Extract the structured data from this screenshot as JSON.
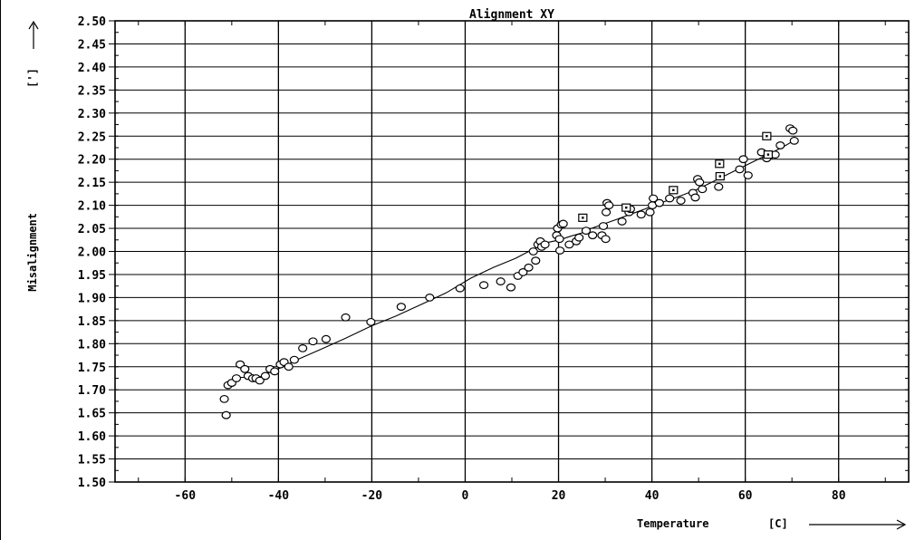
{
  "chart_data": {
    "type": "scatter",
    "title": "Alignment XY",
    "xlabel": "Temperature",
    "xunit": "[C]",
    "ylabel": "Misalignment",
    "yunit": "[']",
    "xlim": [
      -75,
      95
    ],
    "ylim": [
      1.5,
      2.5
    ],
    "x_ticks": [
      -60,
      -40,
      -20,
      0,
      20,
      40,
      60,
      80
    ],
    "y_ticks": [
      "1.50",
      "1.55",
      "1.60",
      "1.65",
      "1.70",
      "1.75",
      "1.80",
      "1.85",
      "1.90",
      "1.95",
      "2.00",
      "2.05",
      "2.10",
      "2.15",
      "2.20",
      "2.25",
      "2.30",
      "2.35",
      "2.40",
      "2.45",
      "2.50"
    ],
    "grid": true,
    "series": [
      {
        "marker": "circle",
        "points": [
          [
            -51.6,
            1.68
          ],
          [
            -51.2,
            1.645
          ],
          [
            -50.8,
            1.71
          ],
          [
            -50,
            1.715
          ],
          [
            -49,
            1.725
          ],
          [
            -48.2,
            1.755
          ],
          [
            -47.2,
            1.745
          ],
          [
            -46.5,
            1.73
          ],
          [
            -45.5,
            1.725
          ],
          [
            -44.8,
            1.725
          ],
          [
            -44,
            1.72
          ],
          [
            -42.8,
            1.73
          ],
          [
            -41.8,
            1.745
          ],
          [
            -40.8,
            1.74
          ],
          [
            -39.6,
            1.755
          ],
          [
            -38.8,
            1.76
          ],
          [
            -37.8,
            1.75
          ],
          [
            -36.6,
            1.765
          ],
          [
            -34.8,
            1.79
          ],
          [
            -32.6,
            1.805
          ],
          [
            -29.8,
            1.81
          ],
          [
            -25.6,
            1.857
          ],
          [
            -20.2,
            1.847
          ],
          [
            -13.7,
            1.88
          ],
          [
            -7.6,
            1.9
          ],
          [
            -1.1,
            1.92
          ],
          [
            4,
            1.927
          ],
          [
            7.6,
            1.935
          ],
          [
            9.8,
            1.922
          ],
          [
            11.3,
            1.947
          ],
          [
            12.4,
            1.955
          ],
          [
            13.6,
            1.965
          ],
          [
            14.6,
            2.0
          ],
          [
            15.1,
            1.98
          ],
          [
            15.6,
            2.015
          ],
          [
            16.1,
            2.022
          ],
          [
            16.4,
            2.01
          ],
          [
            17.1,
            2.015
          ],
          [
            19.6,
            2.035
          ],
          [
            19.8,
            2.05
          ],
          [
            20.2,
            2.027
          ],
          [
            20.3,
            2.002
          ],
          [
            20.6,
            2.058
          ],
          [
            21,
            2.06
          ],
          [
            22.3,
            2.015
          ],
          [
            23.8,
            2.022
          ],
          [
            24.4,
            2.03
          ],
          [
            25.9,
            2.045
          ],
          [
            27.3,
            2.035
          ],
          [
            29.3,
            2.035
          ],
          [
            29.6,
            2.055
          ],
          [
            30.1,
            2.027
          ],
          [
            30.2,
            2.085
          ],
          [
            30.4,
            2.105
          ],
          [
            30.8,
            2.1
          ],
          [
            33.6,
            2.065
          ],
          [
            35.1,
            2.085
          ],
          [
            35.4,
            2.092
          ],
          [
            37.7,
            2.08
          ],
          [
            39.6,
            2.085
          ],
          [
            40.1,
            2.1
          ],
          [
            40.3,
            2.115
          ],
          [
            41.6,
            2.105
          ],
          [
            43.8,
            2.115
          ],
          [
            46.2,
            2.11
          ],
          [
            48.8,
            2.127
          ],
          [
            49.3,
            2.117
          ],
          [
            49.8,
            2.157
          ],
          [
            50.2,
            2.15
          ],
          [
            50.8,
            2.135
          ],
          [
            54.3,
            2.14
          ],
          [
            58.8,
            2.178
          ],
          [
            59.6,
            2.2
          ],
          [
            60.6,
            2.165
          ],
          [
            63.5,
            2.215
          ],
          [
            64.6,
            2.202
          ],
          [
            66.4,
            2.21
          ],
          [
            67.5,
            2.23
          ],
          [
            69.6,
            2.267
          ],
          [
            70.2,
            2.262
          ],
          [
            70.5,
            2.24
          ]
        ]
      },
      {
        "marker": "square",
        "points": [
          [
            25.2,
            2.073
          ],
          [
            34.5,
            2.095
          ],
          [
            44.6,
            2.133
          ],
          [
            54.5,
            2.19
          ],
          [
            54.6,
            2.163
          ],
          [
            64.6,
            2.25
          ],
          [
            64.9,
            2.21
          ]
        ]
      },
      {
        "marker": "line",
        "points": [
          [
            -51.5,
            1.705
          ],
          [
            -49.8,
            1.718
          ],
          [
            -48.6,
            1.727
          ],
          [
            -46.9,
            1.727
          ],
          [
            -44.2,
            1.727
          ],
          [
            -41.8,
            1.738
          ],
          [
            -39.4,
            1.748
          ],
          [
            -35.4,
            1.768
          ],
          [
            -30.4,
            1.79
          ],
          [
            -25.6,
            1.812
          ],
          [
            -20.2,
            1.838
          ],
          [
            -14.8,
            1.86
          ],
          [
            -9.4,
            1.885
          ],
          [
            -4.1,
            1.91
          ],
          [
            1.2,
            1.942
          ],
          [
            6,
            1.965
          ],
          [
            10.8,
            1.985
          ],
          [
            13.6,
            2.0
          ],
          [
            15.2,
            2.008
          ],
          [
            17,
            2.018
          ],
          [
            20.2,
            2.025
          ],
          [
            22.6,
            2.033
          ],
          [
            25,
            2.04
          ],
          [
            27,
            2.05
          ],
          [
            29.8,
            2.06
          ],
          [
            32.6,
            2.07
          ],
          [
            35.2,
            2.08
          ],
          [
            38,
            2.09
          ],
          [
            40.4,
            2.1
          ],
          [
            43.8,
            2.112
          ],
          [
            46.8,
            2.123
          ],
          [
            49.8,
            2.135
          ],
          [
            52.8,
            2.15
          ],
          [
            55.8,
            2.165
          ],
          [
            58.8,
            2.18
          ],
          [
            61.8,
            2.195
          ],
          [
            64.8,
            2.21
          ],
          [
            67.8,
            2.225
          ],
          [
            70.4,
            2.24
          ]
        ]
      }
    ]
  }
}
